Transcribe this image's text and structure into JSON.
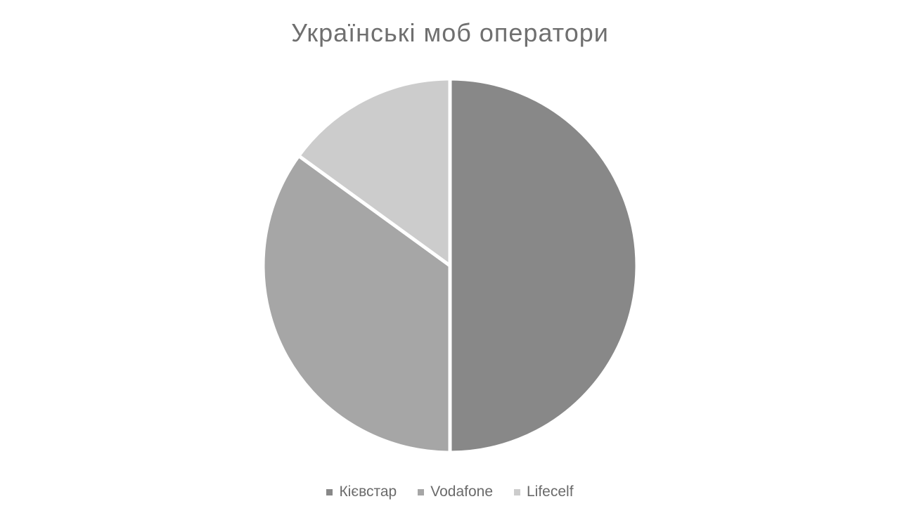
{
  "chart_data": {
    "type": "pie",
    "title": "Українські моб оператори",
    "categories": [
      "Кієвстар",
      "Vodafone",
      "Lifecelf"
    ],
    "values": [
      50,
      35,
      15
    ],
    "colors": [
      "#888888",
      "#a6a6a6",
      "#cccccc"
    ],
    "legend_position": "bottom",
    "start_angle_deg": 0,
    "direction": "clockwise"
  }
}
